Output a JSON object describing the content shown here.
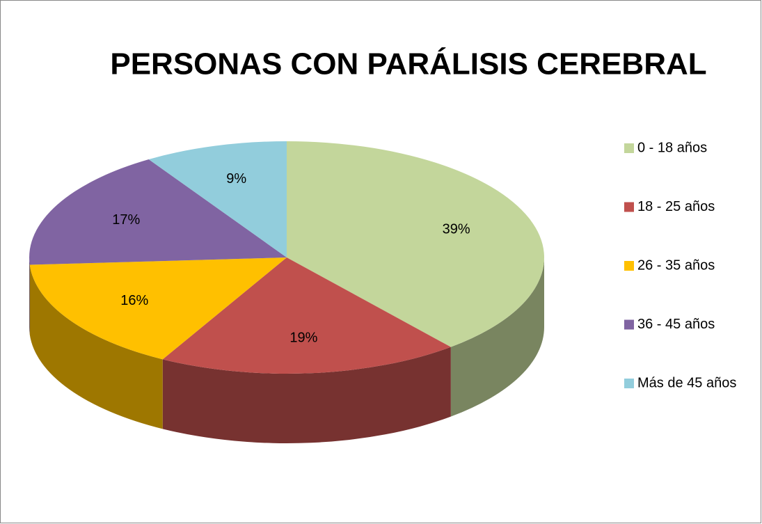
{
  "chart_data": {
    "type": "pie",
    "title": "PERSONAS CON PARÁLISIS CEREBRAL",
    "categories": [
      "0 - 18 años",
      "18 - 25 años",
      "26 - 35 años",
      "36 - 45 años",
      "Más de 45 años"
    ],
    "values": [
      39,
      19,
      16,
      17,
      9
    ],
    "value_labels": [
      "39%",
      "19%",
      "16%",
      "17%",
      "9%"
    ],
    "colors": [
      "#c3d69b",
      "#c0504d",
      "#ffc000",
      "#8064a2",
      "#92cddc"
    ],
    "legend": "right"
  }
}
